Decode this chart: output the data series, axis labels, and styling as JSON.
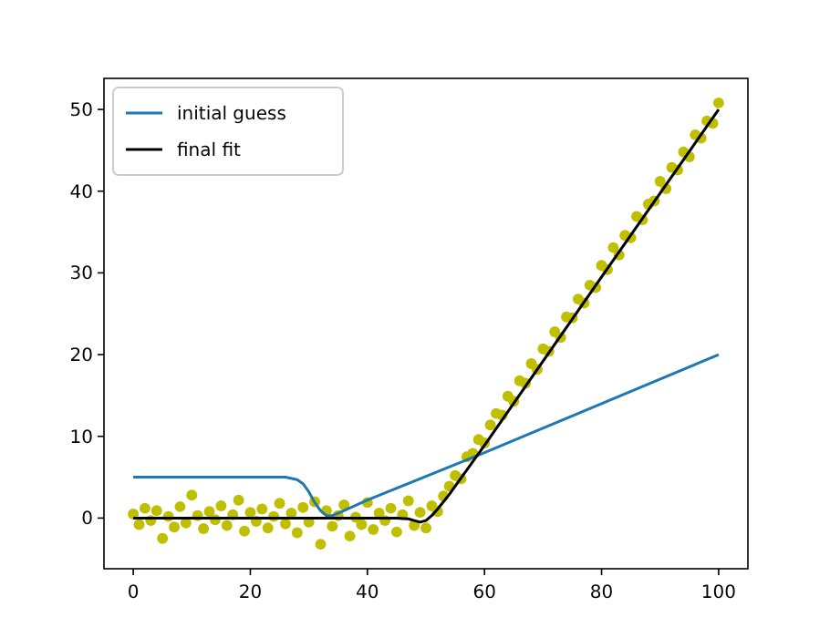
{
  "chart_data": {
    "type": "scatter",
    "xlim": [
      -5,
      105
    ],
    "ylim": [
      -6.2,
      53.8
    ],
    "xticks": [
      0,
      20,
      40,
      60,
      80,
      100
    ],
    "yticks": [
      0,
      10,
      20,
      30,
      40,
      50
    ],
    "legend": "top left",
    "grid": false,
    "series": [
      {
        "marker": "circle",
        "color": "#bfbf00",
        "x": [
          0,
          1,
          2,
          3,
          4,
          5,
          6,
          7,
          8,
          9,
          10,
          11,
          12,
          13,
          14,
          15,
          16,
          17,
          18,
          19,
          20,
          21,
          22,
          23,
          24,
          25,
          26,
          27,
          28,
          29,
          30,
          31,
          32,
          33,
          34,
          35,
          36,
          37,
          38,
          39,
          40,
          41,
          42,
          43,
          44,
          45,
          46,
          47,
          48,
          49,
          50,
          51,
          52,
          53,
          54,
          55,
          56,
          57,
          58,
          59,
          60,
          61,
          62,
          63,
          64,
          65,
          66,
          67,
          68,
          69,
          70,
          71,
          72,
          73,
          74,
          75,
          76,
          77,
          78,
          79,
          80,
          81,
          82,
          83,
          84,
          85,
          86,
          87,
          88,
          89,
          90,
          91,
          92,
          93,
          94,
          95,
          96,
          97,
          98,
          99,
          100
        ],
        "values": [
          0.5,
          -0.8,
          1.2,
          -0.3,
          0.9,
          -2.5,
          0.2,
          -1.1,
          1.4,
          -0.6,
          2.8,
          0.3,
          -1.3,
          0.8,
          -0.2,
          1.5,
          -0.9,
          0.4,
          2.2,
          -1.6,
          0.7,
          -0.4,
          1.1,
          -1.2,
          0.2,
          1.8,
          -0.7,
          0.6,
          -1.8,
          1.3,
          -0.5,
          2.0,
          -3.2,
          0.9,
          -1.0,
          0.3,
          1.6,
          -2.2,
          0.1,
          -0.8,
          1.9,
          -1.4,
          0.6,
          -0.3,
          1.2,
          -1.7,
          0.4,
          2.1,
          -0.9,
          0.7,
          -1.2,
          1.5,
          0.8,
          2.7,
          3.9,
          5.2,
          4.8,
          7.5,
          7.9,
          9.6,
          9.2,
          11.4,
          12.8,
          12.6,
          14.9,
          14.3,
          16.8,
          16.5,
          18.9,
          18.2,
          20.7,
          20.4,
          22.8,
          22.1,
          24.6,
          24.5,
          26.8,
          26.3,
          28.5,
          28.2,
          30.9,
          30.4,
          33.1,
          32.2,
          34.6,
          34.3,
          36.9,
          36.5,
          38.4,
          38.8,
          41.2,
          40.3,
          42.9,
          42.6,
          44.8,
          44.2,
          46.9,
          46.5,
          48.6,
          48.3,
          50.8
        ]
      },
      {
        "type": "line",
        "name": "initial guess",
        "color": "#1f77b4",
        "x": [
          0,
          20,
          26,
          28,
          29,
          30,
          31,
          32,
          33,
          34,
          35,
          40,
          60,
          80,
          100
        ],
        "values": [
          5,
          5,
          5,
          4.7,
          4.2,
          3.2,
          1.9,
          0.9,
          0.3,
          0.3,
          0.6,
          2.2,
          8,
          14,
          20
        ]
      },
      {
        "type": "line",
        "name": "final fit",
        "color": "#000000",
        "x": [
          0,
          45,
          47,
          48,
          49,
          50,
          51,
          52,
          54,
          56,
          60,
          80,
          100
        ],
        "values": [
          0,
          0,
          -0.1,
          -0.3,
          -0.5,
          -0.3,
          0.3,
          1.1,
          2.9,
          4.9,
          8.9,
          29.5,
          50
        ]
      }
    ]
  }
}
